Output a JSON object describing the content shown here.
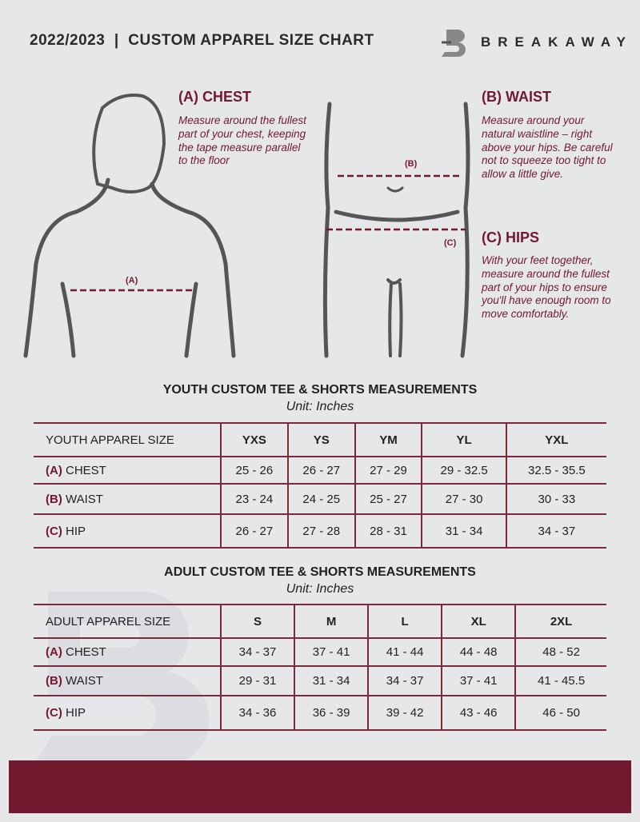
{
  "header": {
    "title": "2022/2023  |  CUSTOM APPAREL SIZE CHART",
    "brand": "BREAKAWAY"
  },
  "guide": {
    "chest": {
      "title": "(A) CHEST",
      "text": "Measure around the fullest part of your chest, keeping the tape measure parallel to the floor",
      "marker": "(A)"
    },
    "waist": {
      "title": "(B) WAIST",
      "text": "Measure around your natural waistline – right above your hips. Be careful not to squeeze too tight to allow a little give.",
      "marker": "(B)"
    },
    "hips": {
      "title": "(C) HIPS",
      "text": "With your feet together, measure around the fullest part of your hips to ensure you'll have enough room to move comfortably.",
      "marker": "(C)"
    }
  },
  "youth": {
    "title": "YOUTH CUSTOM TEE & SHORTS MEASUREMENTS",
    "unit": "Unit: Inches",
    "header": "YOUTH APPAREL SIZE",
    "sizes": [
      "YXS",
      "YS",
      "YM",
      "YL",
      "YXL"
    ],
    "rows": [
      {
        "letter": "(A)",
        "label": "CHEST",
        "values": [
          "25 - 26",
          "26 - 27",
          "27 - 29",
          "29 - 32.5",
          "32.5 - 35.5"
        ]
      },
      {
        "letter": "(B)",
        "label": "WAIST",
        "values": [
          "23 - 24",
          "24 - 25",
          "25 - 27",
          "27 - 30",
          "30 - 33"
        ]
      },
      {
        "letter": "(C)",
        "label": "HIP",
        "values": [
          "26 - 27",
          "27 - 28",
          "28 - 31",
          "31 - 34",
          "34 - 37"
        ]
      }
    ]
  },
  "adult": {
    "title": "ADULT CUSTOM TEE & SHORTS MEASUREMENTS",
    "unit": "Unit: Inches",
    "header": "ADULT APPAREL SIZE",
    "sizes": [
      "S",
      "M",
      "L",
      "XL",
      "2XL"
    ],
    "rows": [
      {
        "letter": "(A)",
        "label": "CHEST",
        "values": [
          "34 - 37",
          "37 - 41",
          "41 - 44",
          "44 - 48",
          "48 - 52"
        ]
      },
      {
        "letter": "(B)",
        "label": "WAIST",
        "values": [
          "29 - 31",
          "31 - 34",
          "34 - 37",
          "37 - 41",
          "41 - 45.5"
        ]
      },
      {
        "letter": "(C)",
        "label": "HIP",
        "values": [
          "34 - 36",
          "36 - 39",
          "39 - 42",
          "43 - 46",
          "46 - 50"
        ]
      }
    ]
  },
  "colors": {
    "accent": "#72192f",
    "background": "#e6e7e9"
  }
}
